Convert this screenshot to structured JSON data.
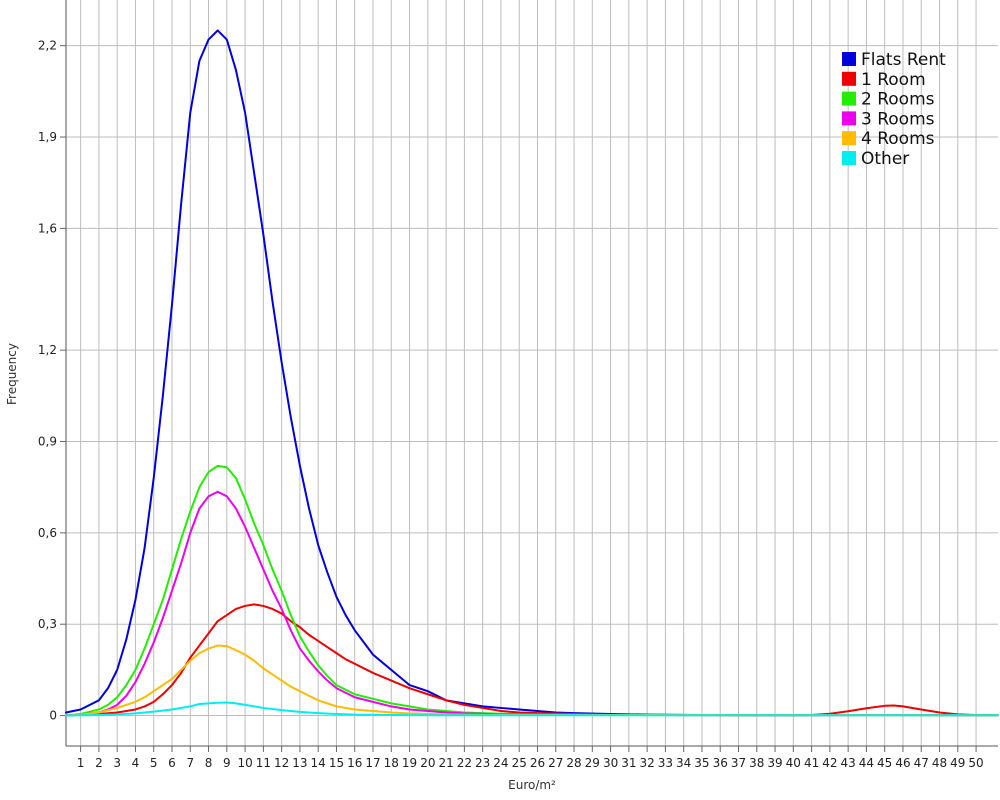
{
  "chart_data": {
    "type": "line",
    "xlabel": "Euro/m²",
    "ylabel": "Frequency",
    "xlim": [
      0.2,
      51.2
    ],
    "ylim": [
      -0.1,
      2.35
    ],
    "x_ticks": [
      1,
      2,
      3,
      4,
      5,
      6,
      7,
      8,
      9,
      10,
      11,
      12,
      13,
      14,
      15,
      16,
      17,
      18,
      19,
      20,
      21,
      22,
      23,
      24,
      25,
      26,
      27,
      28,
      29,
      30,
      31,
      32,
      33,
      34,
      35,
      36,
      37,
      38,
      39,
      40,
      41,
      42,
      43,
      44,
      45,
      46,
      47,
      48,
      49,
      50
    ],
    "y_ticks": [
      {
        "value": 0,
        "label": "0"
      },
      {
        "value": 0.3,
        "label": "0,3"
      },
      {
        "value": 0.6,
        "label": "0,6"
      },
      {
        "value": 0.9,
        "label": "0,9"
      },
      {
        "value": 1.2,
        "label": "1,2"
      },
      {
        "value": 1.6,
        "label": "1,6"
      },
      {
        "value": 1.9,
        "label": "1,9"
      },
      {
        "value": 2.2,
        "label": "2,2"
      }
    ],
    "grid": true,
    "legend_position": "top-right",
    "series": [
      {
        "name": "Flats Rent",
        "color": "#0000dd",
        "points": [
          [
            0.2,
            0.01
          ],
          [
            1,
            0.02
          ],
          [
            2,
            0.05
          ],
          [
            2.5,
            0.09
          ],
          [
            3,
            0.15
          ],
          [
            3.5,
            0.25
          ],
          [
            4,
            0.38
          ],
          [
            4.5,
            0.55
          ],
          [
            5,
            0.78
          ],
          [
            5.5,
            1.05
          ],
          [
            6,
            1.35
          ],
          [
            6.5,
            1.68
          ],
          [
            7,
            1.98
          ],
          [
            7.5,
            2.15
          ],
          [
            8,
            2.22
          ],
          [
            8.5,
            2.25
          ],
          [
            9,
            2.22
          ],
          [
            9.5,
            2.12
          ],
          [
            10,
            1.98
          ],
          [
            10.5,
            1.78
          ],
          [
            11,
            1.58
          ],
          [
            11.5,
            1.36
          ],
          [
            12,
            1.16
          ],
          [
            12.5,
            0.98
          ],
          [
            13,
            0.82
          ],
          [
            13.5,
            0.68
          ],
          [
            14,
            0.56
          ],
          [
            14.5,
            0.47
          ],
          [
            15,
            0.39
          ],
          [
            15.5,
            0.33
          ],
          [
            16,
            0.28
          ],
          [
            17,
            0.2
          ],
          [
            18,
            0.15
          ],
          [
            19,
            0.1
          ],
          [
            20,
            0.08
          ],
          [
            21,
            0.05
          ],
          [
            22,
            0.04
          ],
          [
            23,
            0.03
          ],
          [
            24,
            0.025
          ],
          [
            25,
            0.02
          ],
          [
            26,
            0.015
          ],
          [
            27,
            0.01
          ],
          [
            28,
            0.008
          ],
          [
            30,
            0.005
          ],
          [
            32,
            0.003
          ],
          [
            35,
            0.002
          ],
          [
            40,
            0.001
          ],
          [
            44,
            0.002
          ],
          [
            48,
            0.002
          ],
          [
            51.2,
            0.001
          ]
        ]
      },
      {
        "name": "1 Room",
        "color": "#ee0000",
        "points": [
          [
            0.2,
            0
          ],
          [
            2,
            0.005
          ],
          [
            3,
            0.01
          ],
          [
            4,
            0.02
          ],
          [
            4.5,
            0.03
          ],
          [
            5,
            0.045
          ],
          [
            5.5,
            0.07
          ],
          [
            6,
            0.1
          ],
          [
            6.5,
            0.14
          ],
          [
            7,
            0.19
          ],
          [
            7.5,
            0.23
          ],
          [
            8,
            0.27
          ],
          [
            8.5,
            0.31
          ],
          [
            9,
            0.33
          ],
          [
            9.5,
            0.35
          ],
          [
            10,
            0.36
          ],
          [
            10.5,
            0.365
          ],
          [
            11,
            0.36
          ],
          [
            11.5,
            0.35
          ],
          [
            12,
            0.335
          ],
          [
            12.5,
            0.31
          ],
          [
            13,
            0.29
          ],
          [
            13.5,
            0.265
          ],
          [
            14,
            0.245
          ],
          [
            14.5,
            0.225
          ],
          [
            15,
            0.205
          ],
          [
            15.5,
            0.185
          ],
          [
            16,
            0.17
          ],
          [
            17,
            0.14
          ],
          [
            18,
            0.115
          ],
          [
            19,
            0.09
          ],
          [
            20,
            0.07
          ],
          [
            21,
            0.05
          ],
          [
            22,
            0.035
          ],
          [
            23,
            0.025
          ],
          [
            24,
            0.015
          ],
          [
            25,
            0.01
          ],
          [
            26,
            0.008
          ],
          [
            28,
            0.005
          ],
          [
            30,
            0.003
          ],
          [
            32,
            0.002
          ],
          [
            38,
            0.001
          ],
          [
            41,
            0.002
          ],
          [
            42,
            0.006
          ],
          [
            43,
            0.014
          ],
          [
            44,
            0.024
          ],
          [
            45,
            0.032
          ],
          [
            45.5,
            0.033
          ],
          [
            46,
            0.03
          ],
          [
            47,
            0.02
          ],
          [
            48,
            0.01
          ],
          [
            49,
            0.004
          ],
          [
            50,
            0.002
          ],
          [
            51.2,
            0.001
          ]
        ]
      },
      {
        "name": "2 Rooms",
        "color": "#22ee00",
        "points": [
          [
            0.2,
            0
          ],
          [
            1,
            0.005
          ],
          [
            2,
            0.02
          ],
          [
            2.5,
            0.035
          ],
          [
            3,
            0.06
          ],
          [
            3.5,
            0.1
          ],
          [
            4,
            0.15
          ],
          [
            4.5,
            0.22
          ],
          [
            5,
            0.3
          ],
          [
            5.5,
            0.38
          ],
          [
            6,
            0.48
          ],
          [
            6.5,
            0.58
          ],
          [
            7,
            0.67
          ],
          [
            7.5,
            0.75
          ],
          [
            8,
            0.8
          ],
          [
            8.5,
            0.82
          ],
          [
            9,
            0.815
          ],
          [
            9.5,
            0.78
          ],
          [
            10,
            0.71
          ],
          [
            10.5,
            0.63
          ],
          [
            11,
            0.56
          ],
          [
            11.5,
            0.48
          ],
          [
            12,
            0.41
          ],
          [
            12.5,
            0.33
          ],
          [
            13,
            0.26
          ],
          [
            13.5,
            0.21
          ],
          [
            14,
            0.165
          ],
          [
            14.5,
            0.13
          ],
          [
            15,
            0.1
          ],
          [
            15.5,
            0.085
          ],
          [
            16,
            0.07
          ],
          [
            17,
            0.055
          ],
          [
            18,
            0.04
          ],
          [
            19,
            0.03
          ],
          [
            20,
            0.02
          ],
          [
            21,
            0.015
          ],
          [
            22,
            0.01
          ],
          [
            24,
            0.006
          ],
          [
            26,
            0.004
          ],
          [
            30,
            0.002
          ],
          [
            51.2,
            0.001
          ]
        ]
      },
      {
        "name": "3 Rooms",
        "color": "#ee00ee",
        "points": [
          [
            0.2,
            0
          ],
          [
            1,
            0.003
          ],
          [
            2,
            0.01
          ],
          [
            2.5,
            0.02
          ],
          [
            3,
            0.035
          ],
          [
            3.5,
            0.065
          ],
          [
            4,
            0.11
          ],
          [
            4.5,
            0.17
          ],
          [
            5,
            0.24
          ],
          [
            5.5,
            0.32
          ],
          [
            6,
            0.41
          ],
          [
            6.5,
            0.5
          ],
          [
            7,
            0.6
          ],
          [
            7.5,
            0.68
          ],
          [
            8,
            0.72
          ],
          [
            8.5,
            0.735
          ],
          [
            9,
            0.72
          ],
          [
            9.5,
            0.68
          ],
          [
            10,
            0.62
          ],
          [
            10.5,
            0.55
          ],
          [
            11,
            0.48
          ],
          [
            11.5,
            0.41
          ],
          [
            12,
            0.35
          ],
          [
            12.5,
            0.28
          ],
          [
            13,
            0.22
          ],
          [
            13.5,
            0.18
          ],
          [
            14,
            0.145
          ],
          [
            14.5,
            0.115
          ],
          [
            15,
            0.09
          ],
          [
            15.5,
            0.075
          ],
          [
            16,
            0.06
          ],
          [
            17,
            0.045
          ],
          [
            18,
            0.03
          ],
          [
            19,
            0.02
          ],
          [
            20,
            0.015
          ],
          [
            21,
            0.01
          ],
          [
            22,
            0.007
          ],
          [
            24,
            0.004
          ],
          [
            27,
            0.002
          ],
          [
            51.2,
            0.001
          ]
        ]
      },
      {
        "name": "4 Rooms",
        "color": "#ffbb00",
        "points": [
          [
            0.2,
            0
          ],
          [
            1,
            0.003
          ],
          [
            2,
            0.01
          ],
          [
            3,
            0.025
          ],
          [
            4,
            0.045
          ],
          [
            4.5,
            0.06
          ],
          [
            5,
            0.08
          ],
          [
            5.5,
            0.1
          ],
          [
            6,
            0.12
          ],
          [
            6.5,
            0.15
          ],
          [
            7,
            0.18
          ],
          [
            7.5,
            0.205
          ],
          [
            8,
            0.22
          ],
          [
            8.5,
            0.23
          ],
          [
            9,
            0.228
          ],
          [
            9.5,
            0.215
          ],
          [
            10,
            0.2
          ],
          [
            10.5,
            0.18
          ],
          [
            11,
            0.155
          ],
          [
            11.5,
            0.135
          ],
          [
            12,
            0.115
          ],
          [
            12.5,
            0.095
          ],
          [
            13,
            0.08
          ],
          [
            13.5,
            0.065
          ],
          [
            14,
            0.05
          ],
          [
            14.5,
            0.04
          ],
          [
            15,
            0.03
          ],
          [
            16,
            0.02
          ],
          [
            17,
            0.015
          ],
          [
            18,
            0.01
          ],
          [
            19,
            0.007
          ],
          [
            20,
            0.005
          ],
          [
            22,
            0.003
          ],
          [
            25,
            0.002
          ],
          [
            51.2,
            0.001
          ]
        ]
      },
      {
        "name": "Other",
        "color": "#00eeee",
        "points": [
          [
            0.2,
            0
          ],
          [
            2,
            0.002
          ],
          [
            3,
            0.004
          ],
          [
            4,
            0.007
          ],
          [
            5,
            0.013
          ],
          [
            6,
            0.02
          ],
          [
            7,
            0.03
          ],
          [
            7.5,
            0.038
          ],
          [
            8,
            0.04
          ],
          [
            8.5,
            0.042
          ],
          [
            9,
            0.043
          ],
          [
            9.5,
            0.04
          ],
          [
            10,
            0.035
          ],
          [
            11,
            0.025
          ],
          [
            12,
            0.018
          ],
          [
            13,
            0.012
          ],
          [
            14,
            0.008
          ],
          [
            15,
            0.005
          ],
          [
            16,
            0.003
          ],
          [
            18,
            0.002
          ],
          [
            20,
            0.001
          ],
          [
            51.2,
            0.001
          ]
        ]
      }
    ]
  }
}
